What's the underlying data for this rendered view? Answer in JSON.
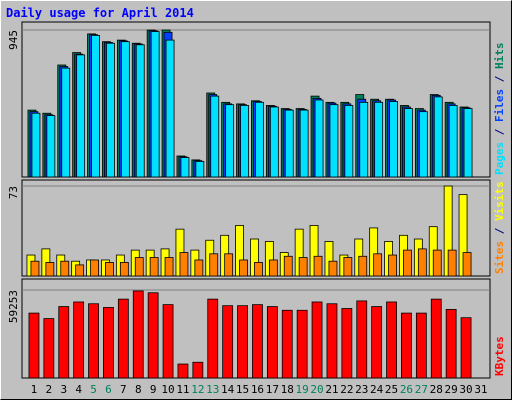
{
  "chart_data": {
    "type": "bar",
    "title": "Daily usage for April 2014",
    "categories": [
      "1",
      "2",
      "3",
      "4",
      "5",
      "6",
      "7",
      "8",
      "9",
      "10",
      "11",
      "12",
      "13",
      "14",
      "15",
      "16",
      "17",
      "18",
      "19",
      "20",
      "21",
      "22",
      "23",
      "24",
      "25",
      "26",
      "27",
      "28",
      "29",
      "30",
      "31"
    ],
    "category_colors": [
      "#000000",
      "#000000",
      "#000000",
      "#000000",
      "#00805c",
      "#00805c",
      "#000000",
      "#000000",
      "#000000",
      "#000000",
      "#000000",
      "#00805c",
      "#00805c",
      "#000000",
      "#000000",
      "#000000",
      "#000000",
      "#000000",
      "#00805c",
      "#00805c",
      "#000000",
      "#000000",
      "#000000",
      "#000000",
      "#000000",
      "#00805c",
      "#00805c",
      "#000000",
      "#000000",
      "#000000",
      "#000000"
    ],
    "legend_separator": " / ",
    "panels": [
      {
        "ylim": [
          0,
          945
        ],
        "yticks": [
          945
        ],
        "series": [
          {
            "name": "Hits",
            "color": "#00805c",
            "values": [
              430,
              410,
              720,
              800,
              920,
              870,
              880,
              860,
              945,
              945,
              135,
              110,
              540,
              480,
              470,
              490,
              460,
              440,
              440,
              520,
              480,
              480,
              530,
              500,
              500,
              460,
              440,
              530,
              480,
              450,
              null
            ]
          },
          {
            "name": "Files",
            "color": "#0040ff",
            "values": [
              420,
              400,
              710,
              790,
              915,
              865,
              875,
              855,
              940,
              930,
              130,
              105,
              530,
              470,
              465,
              485,
              455,
              435,
              435,
              505,
              475,
              470,
              500,
              490,
              495,
              450,
              430,
              525,
              470,
              445,
              null
            ]
          },
          {
            "name": "Pages",
            "color": "#00e0ff",
            "values": [
              410,
              395,
              700,
              785,
              910,
              860,
              870,
              850,
              935,
              880,
              125,
              100,
              520,
              465,
              460,
              480,
              450,
              430,
              430,
              495,
              465,
              460,
              480,
              480,
              485,
              440,
              420,
              515,
              460,
              440,
              null
            ]
          }
        ]
      },
      {
        "ylim": [
          0,
          73
        ],
        "yticks": [
          73
        ],
        "series": [
          {
            "name": "Visits",
            "color": "#ffff00",
            "values": [
              17,
              22,
              17,
              12,
              13,
              13,
              17,
              21,
              21,
              22,
              38,
              21,
              29,
              33,
              41,
              30,
              28,
              19,
              38,
              41,
              28,
              17,
              30,
              39,
              28,
              33,
              30,
              40,
              73,
              66,
              null
            ]
          },
          {
            "name": "Sites",
            "color": "#ff8000",
            "values": [
              12,
              11,
              12,
              9,
              13,
              11,
              11,
              15,
              15,
              15,
              19,
              13,
              18,
              18,
              13,
              11,
              13,
              16,
              15,
              16,
              12,
              15,
              16,
              18,
              17,
              21,
              22,
              21,
              21,
              19,
              null
            ]
          }
        ]
      },
      {
        "ylim": [
          0,
          59253
        ],
        "yticks": [
          59253
        ],
        "series": [
          {
            "name": "KBytes",
            "color": "#ff0000",
            "values": [
              43700,
              40000,
              48100,
              51200,
              50000,
              47500,
              53100,
              58600,
              57400,
              49400,
              9400,
              10600,
              53100,
              48700,
              48700,
              49400,
              48100,
              45600,
              45600,
              51200,
              50000,
              46800,
              51900,
              48100,
              51200,
              43700,
              43700,
              53100,
              46200,
              40600,
              null
            ]
          }
        ]
      }
    ]
  }
}
